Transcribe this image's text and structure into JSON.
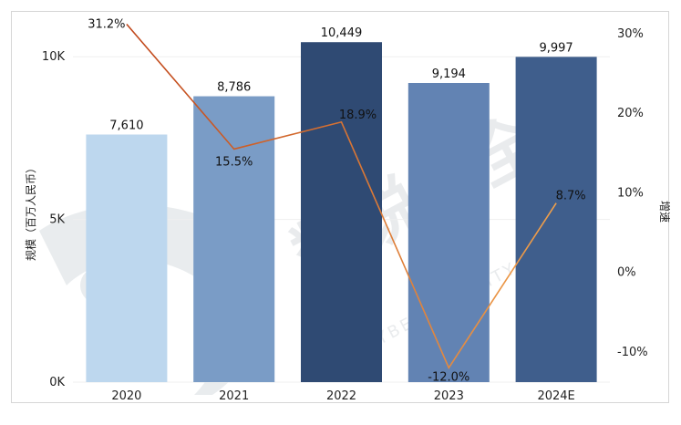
{
  "chart_data": {
    "type": "bar",
    "categories": [
      "2020",
      "2021",
      "2022",
      "2023",
      "2024E"
    ],
    "series": [
      {
        "name": "规模",
        "type": "bar",
        "values": [
          7610,
          8786,
          10449,
          9194,
          9997
        ],
        "labels": [
          "7,610",
          "8,786",
          "10,449",
          "9,194",
          "9,997"
        ],
        "colors": [
          "#bdd7ee",
          "#7a9cc6",
          "#2f4a73",
          "#6283b3",
          "#3f5e8c"
        ]
      },
      {
        "name": "增速",
        "type": "line",
        "values": [
          31.2,
          15.5,
          18.9,
          -12.0,
          8.7
        ],
        "labels": [
          "31.2%",
          "15.5%",
          "18.9%",
          "-12.0%",
          "8.7%"
        ],
        "color_start": "#c0461a",
        "color_end": "#f0a04b"
      }
    ],
    "ylabel": "规模（百万人民币）",
    "y2label": "增速",
    "ylim": [
      0,
      11100
    ],
    "y2lim": [
      -13.8,
      31.6
    ],
    "yticks": [
      {
        "value": 0,
        "label": "0K"
      },
      {
        "value": 5000,
        "label": "5K"
      },
      {
        "value": 10000,
        "label": "10K"
      }
    ],
    "y2ticks": [
      {
        "value": -10,
        "label": "-10%"
      },
      {
        "value": 0,
        "label": "0%"
      },
      {
        "value": 10,
        "label": "10%"
      },
      {
        "value": 20,
        "label": "20%"
      },
      {
        "value": 30,
        "label": "30%"
      }
    ],
    "watermark": "数说安全 CYBERSECURITY NEWS"
  }
}
